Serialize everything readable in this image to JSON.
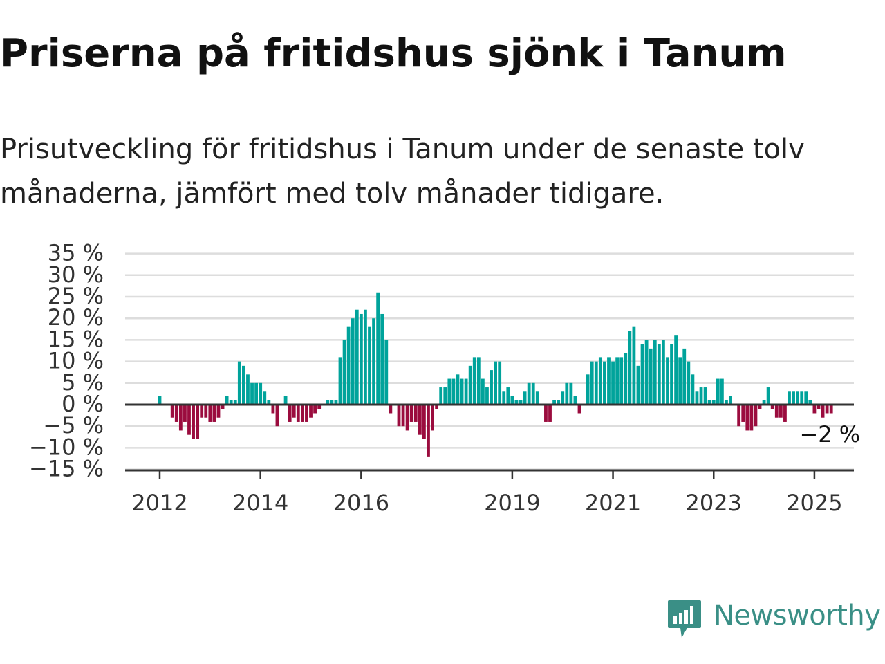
{
  "title": "Priserna på fritidshus sjönk i Tanum",
  "subtitle": "Prisutveckling för fritidshus i Tanum under de senaste tolv månaderna, jämfört med tolv månader tidigare.",
  "logo": {
    "text": "Newsworthy",
    "icon": "newsworthy-chart-icon"
  },
  "colors": {
    "positive": "#00a39b",
    "negative": "#9b0c3e",
    "grid": "#dddddd",
    "axis": "#333333",
    "brand": "#3a8f86"
  },
  "chart_data": {
    "type": "bar",
    "title": "Priserna på fritidshus sjönk i Tanum",
    "xlabel": "",
    "ylabel": "",
    "ylim": [
      -15,
      35
    ],
    "y_ticks": [
      -15,
      -10,
      -5,
      0,
      5,
      10,
      15,
      20,
      25,
      30,
      35
    ],
    "y_tick_labels": [
      "−15 %",
      "−10 %",
      "−5 %",
      "0 %",
      "5 %",
      "10 %",
      "15 %",
      "20 %",
      "25 %",
      "30 %",
      "35 %"
    ],
    "x_tick_labels": [
      {
        "label": "2012",
        "month": "2012-01"
      },
      {
        "label": "2014",
        "month": "2014-01"
      },
      {
        "label": "2016",
        "month": "2016-01"
      },
      {
        "label": "2019",
        "month": "2019-01"
      },
      {
        "label": "2021",
        "month": "2021-01"
      },
      {
        "label": "2023",
        "month": "2023-01"
      },
      {
        "label": "2025",
        "month": "2025-01"
      }
    ],
    "annotation": {
      "text": "−2 %",
      "month": "2025-05"
    },
    "grid": true,
    "start_month": "2012-01",
    "values": [
      2,
      0,
      0,
      -3,
      -4,
      -6,
      -4,
      -7,
      -8,
      -8,
      -3,
      -3,
      -4,
      -4,
      -3,
      -1,
      2,
      1,
      1,
      10,
      9,
      7,
      5,
      5,
      5,
      3,
      1,
      -2,
      -5,
      0,
      2,
      -4,
      -3,
      -4,
      -4,
      -4,
      -3,
      -2,
      -1,
      0,
      1,
      1,
      1,
      11,
      15,
      18,
      20,
      22,
      21,
      22,
      18,
      20,
      26,
      21,
      15,
      -2,
      0,
      -5,
      -5,
      -6,
      -4,
      -4,
      -7,
      -8,
      -12,
      -6,
      -1,
      4,
      4,
      6,
      6,
      7,
      6,
      6,
      9,
      11,
      11,
      6,
      4,
      8,
      10,
      10,
      3,
      4,
      2,
      1,
      1,
      3,
      5,
      5,
      3,
      0,
      -4,
      -4,
      1,
      1,
      3,
      5,
      5,
      2,
      -2,
      0,
      7,
      10,
      10,
      11,
      10,
      11,
      10,
      11,
      11,
      12,
      17,
      18,
      9,
      14,
      15,
      13,
      15,
      14,
      15,
      11,
      14,
      16,
      11,
      13,
      10,
      7,
      3,
      4,
      4,
      1,
      1,
      6,
      6,
      1,
      2,
      0,
      -5,
      -4,
      -6,
      -6,
      -5,
      -1,
      1,
      4,
      -1,
      -3,
      -3,
      -4,
      3,
      3,
      3,
      3,
      3,
      1,
      -2,
      -1,
      -3,
      -2,
      -2
    ]
  }
}
